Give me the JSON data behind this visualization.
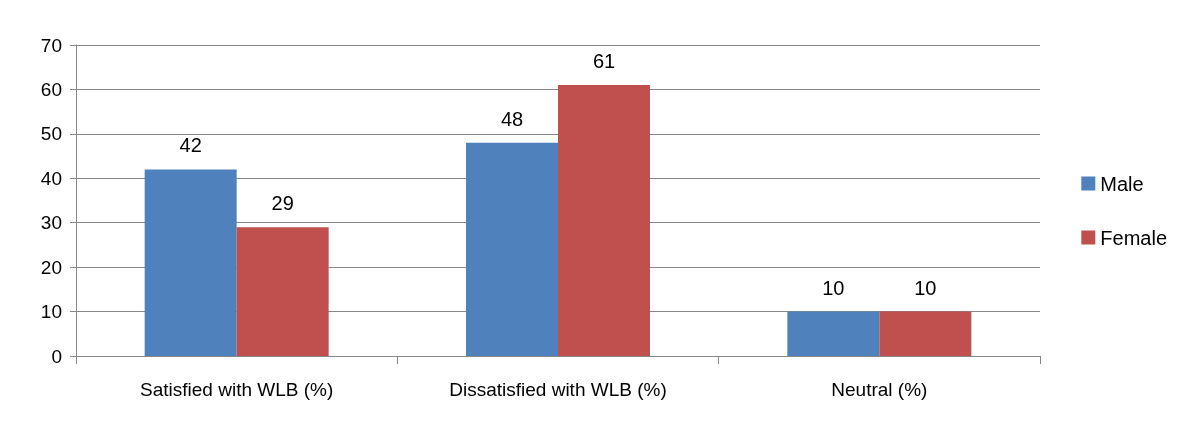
{
  "chart_data": {
    "type": "bar",
    "categories": [
      "Satisfied with WLB (%)",
      "Dissatisfied with WLB (%)",
      "Neutral (%)"
    ],
    "series": [
      {
        "name": "Male",
        "color": "#4f81bd",
        "values": [
          42,
          48,
          10
        ]
      },
      {
        "name": "Female",
        "color": "#c0504d",
        "values": [
          29,
          61,
          10
        ]
      }
    ],
    "ylim": [
      0,
      70
    ],
    "yticks": [
      0,
      10,
      20,
      30,
      40,
      50,
      60,
      70
    ],
    "grid": "y",
    "legend": "right",
    "data_labels": true
  }
}
